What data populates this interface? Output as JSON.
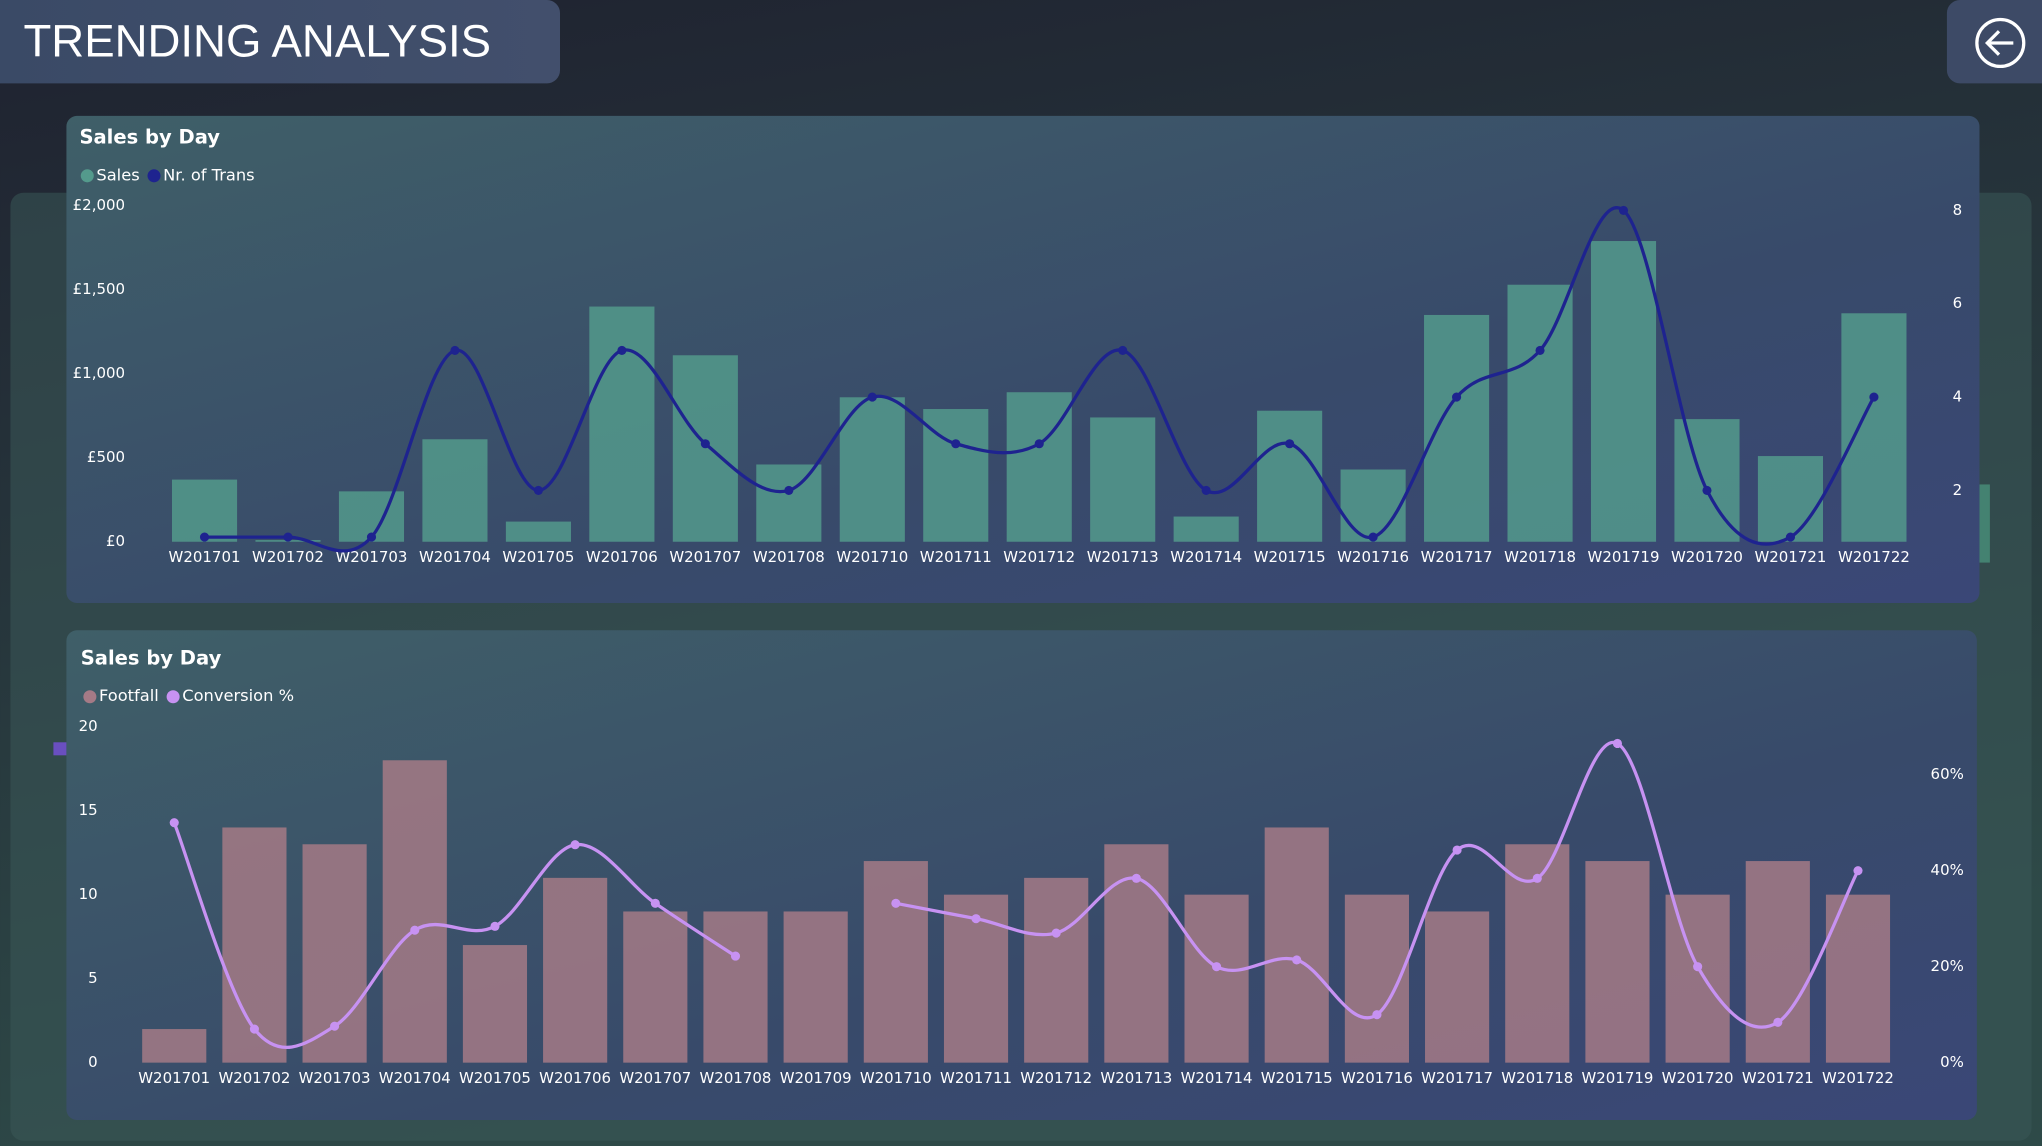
{
  "header": {
    "title": "TRENDING ANALYSIS"
  },
  "chart_data": [
    {
      "type": "bar_line",
      "title": "Sales by Day",
      "categories": [
        "W201701",
        "W201702",
        "W201703",
        "W201704",
        "W201705",
        "W201706",
        "W201707",
        "W201708",
        "W201710",
        "W201711",
        "W201712",
        "W201713",
        "W201714",
        "W201715",
        "W201716",
        "W201717",
        "W201718",
        "W201719",
        "W201720",
        "W201721",
        "W201722"
      ],
      "series": [
        {
          "name": "Sales",
          "type": "bar",
          "color": "#549a8c",
          "values": [
            370,
            10,
            300,
            610,
            120,
            1400,
            1110,
            460,
            860,
            790,
            890,
            740,
            150,
            780,
            430,
            1350,
            1530,
            1790,
            730,
            510,
            1360
          ]
        },
        {
          "name": "Nr. of Trans",
          "type": "line",
          "axis": "y2",
          "color": "#1e238f",
          "values": [
            1,
            1,
            1,
            5,
            2,
            5,
            3,
            2,
            4,
            3,
            3,
            5,
            2,
            3,
            1,
            4,
            5,
            8,
            2,
            1,
            4
          ]
        }
      ],
      "ylim": [
        0,
        2000
      ],
      "yticks": [
        {
          "value": 0,
          "label": "£0"
        },
        {
          "value": 500,
          "label": "£500"
        },
        {
          "value": 1000,
          "label": "£1,000"
        },
        {
          "value": 1500,
          "label": "£1,500"
        },
        {
          "value": 2000,
          "label": "£2,000"
        }
      ],
      "y2lim": [
        0.9,
        8.1
      ],
      "y2ticks": [
        2,
        4,
        6,
        8
      ],
      "legend": "top-left"
    },
    {
      "type": "bar_line",
      "title": "Sales by Day",
      "categories": [
        "W201701",
        "W201702",
        "W201703",
        "W201704",
        "W201705",
        "W201706",
        "W201707",
        "W201708",
        "W201709",
        "W201710",
        "W201711",
        "W201712",
        "W201713",
        "W201714",
        "W201715",
        "W201716",
        "W201717",
        "W201718",
        "W201719",
        "W201720",
        "W201721",
        "W201722"
      ],
      "series": [
        {
          "name": "Footfall",
          "type": "bar",
          "color": "#a57a86",
          "values": [
            2,
            14,
            13,
            18,
            7,
            11,
            9,
            9,
            9,
            12,
            10,
            11,
            13,
            10,
            14,
            10,
            9,
            13,
            12,
            10,
            12,
            10
          ]
        },
        {
          "name": "Conversion %",
          "type": "line",
          "axis": "y2",
          "color": "#c792f2",
          "values": [
            50,
            7,
            7.6,
            27.6,
            28.4,
            45.4,
            33.2,
            22.2,
            null,
            33.2,
            30,
            27,
            38.4,
            20,
            21.4,
            10,
            44.3,
            38.4,
            66.5,
            20,
            8.4,
            40
          ]
        }
      ],
      "ylim": [
        0,
        20
      ],
      "yticks": [
        0,
        5,
        10,
        15,
        20
      ],
      "y2lim": [
        0,
        70
      ],
      "y2ticks": [
        {
          "value": 0,
          "label": "0%"
        },
        {
          "value": 20,
          "label": "20%"
        },
        {
          "value": 40,
          "label": "40%"
        },
        {
          "value": 60,
          "label": "60%"
        }
      ],
      "legend": "top-left"
    }
  ]
}
